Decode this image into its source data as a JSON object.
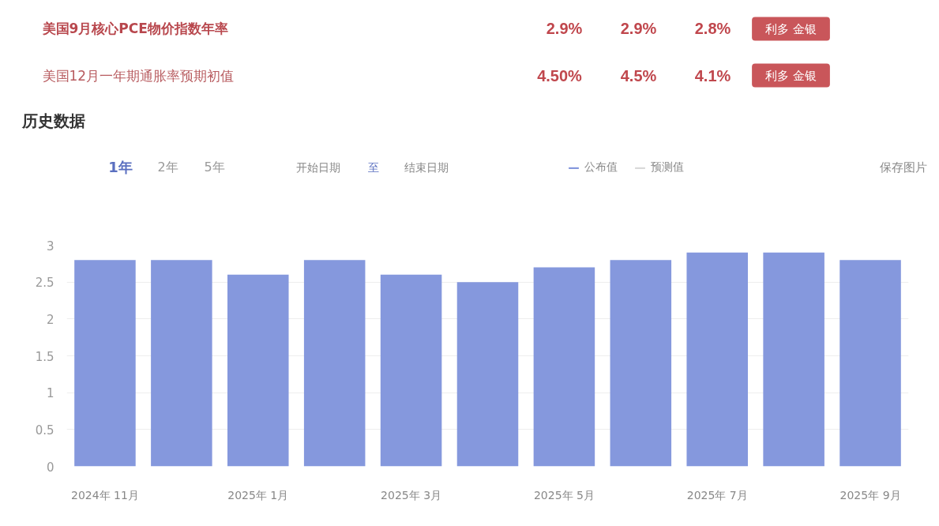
{
  "chart_data": {
    "type": "bar",
    "title": "历史数据",
    "categories": [
      "2024年 11月",
      null,
      "2025年 1月",
      null,
      "2025年 3月",
      null,
      "2025年 5月",
      null,
      "2025年 7月",
      null,
      "2025年 9月"
    ],
    "series": [
      {
        "name": "公布值",
        "color": "#8598dd",
        "values": [
          2.8,
          2.8,
          2.6,
          2.8,
          2.6,
          2.5,
          2.7,
          2.8,
          2.9,
          2.9,
          2.8
        ]
      },
      {
        "name": "预测值",
        "color": "#d9d9d9",
        "values": [
          null,
          null,
          null,
          null,
          null,
          null,
          null,
          null,
          null,
          null,
          null
        ]
      }
    ],
    "ylim": [
      0,
      3
    ],
    "yticks": [
      0,
      0.5,
      1,
      1.5,
      2,
      2.5,
      3
    ],
    "grid": "y",
    "legend": "top right",
    "annotations": [
      "美国9月核心PCE物价指数年率",
      "2.9%",
      "2.9%",
      "2.8%",
      "利多 金银",
      "美国12月一年期通胀率预期初值",
      "4.50%",
      "4.5%",
      "4.1%",
      "利多 金银",
      "1年",
      "2年",
      "5年",
      "开始日期",
      "至",
      "结束日期",
      "保存图片"
    ]
  }
}
